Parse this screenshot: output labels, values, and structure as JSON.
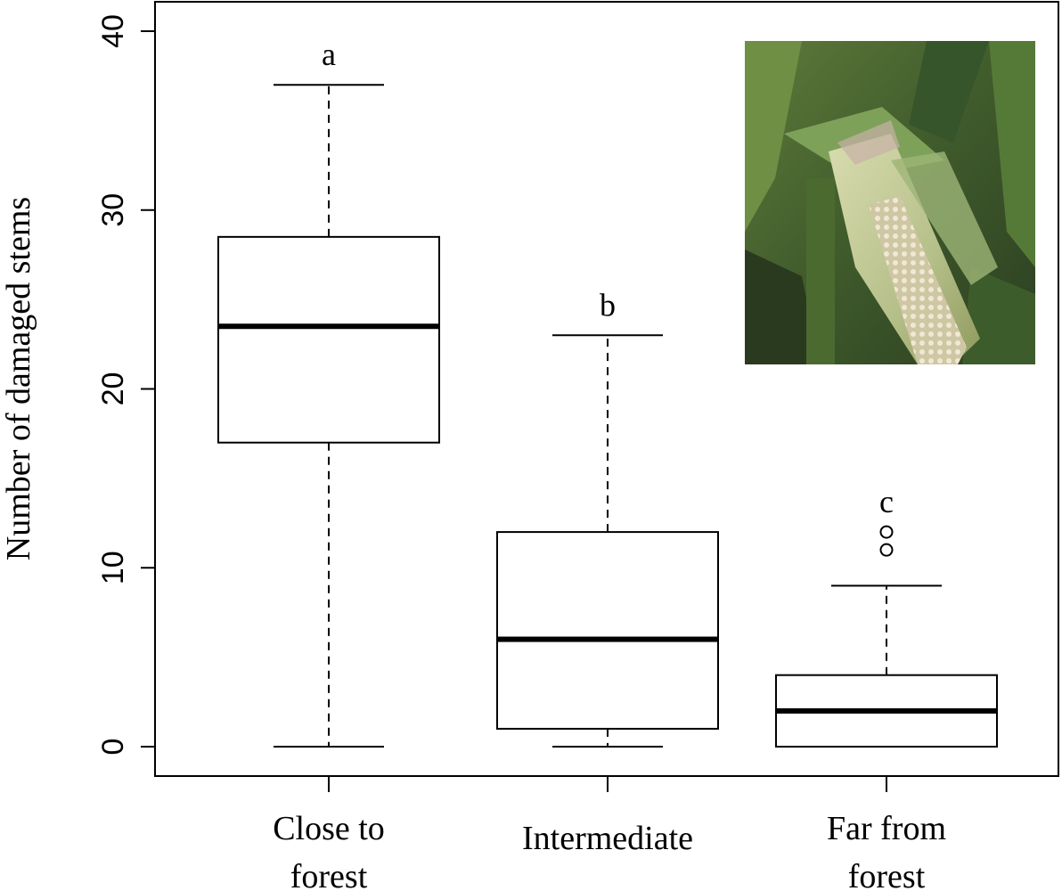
{
  "chart_data": {
    "type": "boxplot",
    "ylabel": "Number of damaged stems",
    "ylim": [
      0,
      40
    ],
    "yticks": [
      0,
      10,
      20,
      30,
      40
    ],
    "categories": [
      "Close to forest",
      "Intermediate",
      "Far from forest"
    ],
    "category_label_lines": [
      [
        "Close to",
        "forest"
      ],
      [
        "Intermediate"
      ],
      [
        "Far from",
        "forest"
      ]
    ],
    "boxes": [
      {
        "category": "Close to forest",
        "whisker_low": 0,
        "q1": 17,
        "median": 23.5,
        "q3": 28.5,
        "whisker_high": 37,
        "outliers": [],
        "letter": "a"
      },
      {
        "category": "Intermediate",
        "whisker_low": 0,
        "q1": 1,
        "median": 6,
        "q3": 12,
        "whisker_high": 23,
        "outliers": [],
        "letter": "b"
      },
      {
        "category": "Far from forest",
        "whisker_low": 0,
        "q1": 0,
        "median": 2,
        "q3": 4,
        "whisker_high": 9,
        "outliers": [
          11,
          12
        ],
        "letter": "c"
      }
    ],
    "inset_photo": "maize-cob-damage-photo",
    "grid": false,
    "legend": "none"
  }
}
